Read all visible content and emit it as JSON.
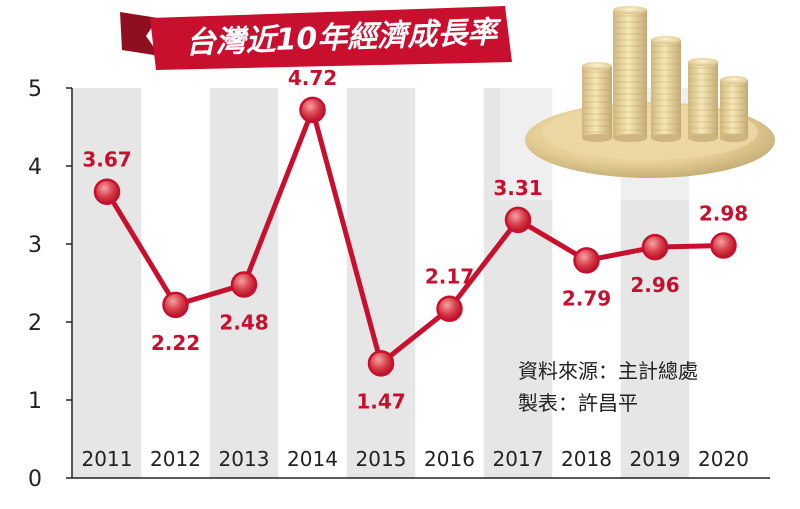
{
  "banner": {
    "title": "台灣近10年經濟成長率"
  },
  "source": {
    "line1": "資料來源：主計總處",
    "line2": "製表：許昌平"
  },
  "colors": {
    "line": "#c8102e",
    "label": "#c8102e",
    "stripe": "#e6e6e6",
    "axis": "#222222"
  },
  "chart_data": {
    "type": "line",
    "title": "台灣近10年經濟成長率",
    "categories": [
      "2011",
      "2012",
      "2013",
      "2014",
      "2015",
      "2016",
      "2017",
      "2018",
      "2019",
      "2020"
    ],
    "series": [
      {
        "values": [
          3.67,
          2.22,
          2.48,
          4.72,
          1.47,
          2.17,
          3.31,
          2.79,
          2.96,
          2.98
        ]
      }
    ],
    "value_labels": [
      "3.67",
      "2.22",
      "2.48",
      "4.72",
      "1.47",
      "2.17",
      "3.31",
      "2.79",
      "2.96",
      "2.98"
    ],
    "ylim": [
      0,
      5
    ],
    "yticks": [
      "0",
      "1",
      "2",
      "3",
      "4",
      "5"
    ],
    "xlabel": "",
    "ylabel": "",
    "grid": false,
    "legend": "none"
  }
}
